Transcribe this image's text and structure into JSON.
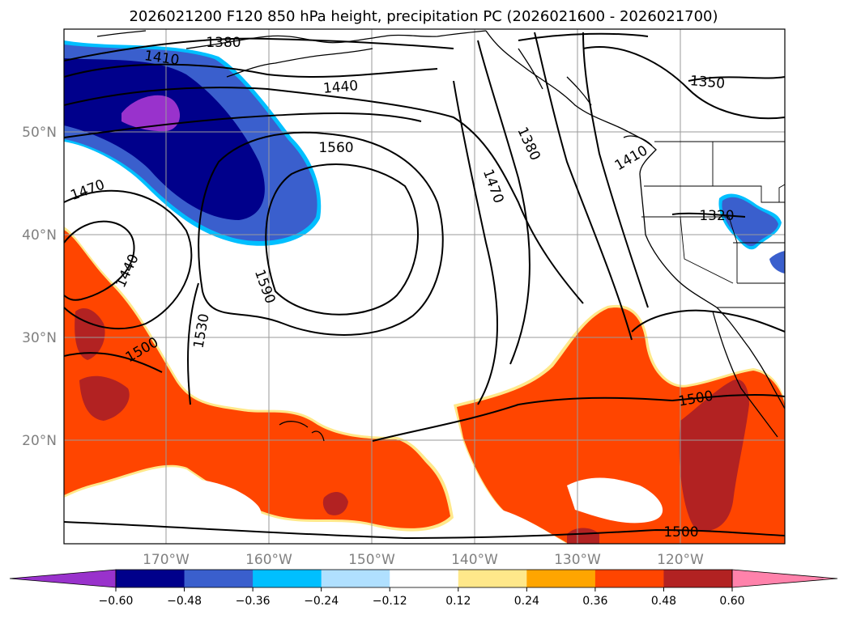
{
  "title": "2026021200 F120 850 hPa height, precipitation PC (2026021600 - 2026021700)",
  "map": {
    "projection": "lat-lon",
    "lon_range": [
      -180,
      -110
    ],
    "lat_range": [
      10,
      60
    ],
    "latitude_labels": [
      "50°N",
      "40°N",
      "30°N",
      "20°N"
    ],
    "longitude_labels": [
      "170°W",
      "160°W",
      "150°W",
      "140°W",
      "130°W",
      "120°W"
    ],
    "grid": true
  },
  "contour_labels": [
    "1380",
    "1410",
    "1440",
    "1560",
    "1350",
    "1380",
    "1470",
    "1470",
    "1440",
    "1590",
    "1530",
    "1500",
    "1500",
    "1320",
    "1500",
    "1410"
  ],
  "colorbar": {
    "ticks": [
      "−0.60",
      "−0.48",
      "−0.36",
      "−0.24",
      "−0.12",
      "0.12",
      "0.24",
      "0.36",
      "0.48",
      "0.60"
    ],
    "colors": [
      "#9932cc",
      "#00008b",
      "#3a5fcd",
      "#00bfff",
      "#b0e0ff",
      "#ffffff",
      "#ffe88a",
      "#ffa500",
      "#ff4500",
      "#b22222",
      "#ff82ab"
    ],
    "extend": "both"
  },
  "colors": {
    "negative_core": "#9932cc",
    "negative_strong": "#00008b",
    "negative_medium": "#3a5fcd",
    "negative_light": "#00bfff",
    "positive_strong": "#ff4500",
    "positive_extreme": "#b22222",
    "positive_edge": "#ffa500",
    "positive_fringe": "#ffe88a"
  }
}
